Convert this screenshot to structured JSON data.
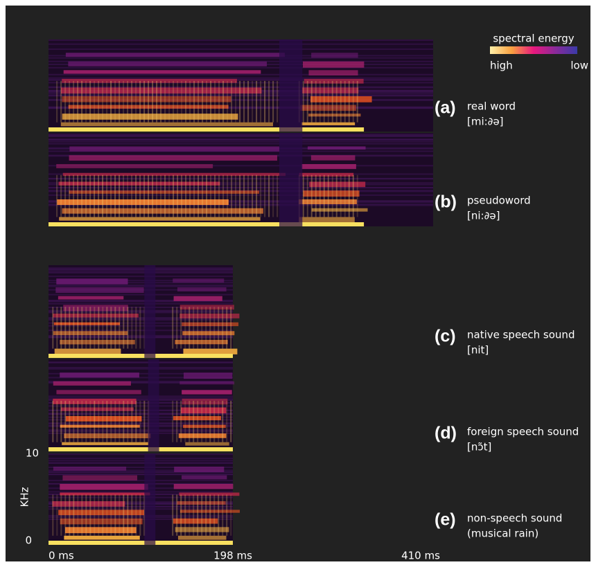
{
  "legend": {
    "title": "spectral energy",
    "high": "high",
    "low": "low"
  },
  "panels": [
    {
      "letter": "(a)",
      "label": "real word",
      "detail": "[mi:∂ə]"
    },
    {
      "letter": "(b)",
      "label": "pseudoword",
      "detail": "[ni:∂ə]"
    },
    {
      "letter": "(c)",
      "label": "native speech sound",
      "detail": "[nit]"
    },
    {
      "letter": "(d)",
      "label": "foreign speech sound",
      "detail": "[nɔ̃t]"
    },
    {
      "letter": "(e)",
      "label": "non-speech sound",
      "detail": "(musical rain)"
    }
  ],
  "axes": {
    "y_label": "KHz",
    "y_top": "10",
    "y_bottom": "0",
    "x_start": "0 ms",
    "x_mid": "198 ms",
    "x_end": "410 ms"
  }
}
